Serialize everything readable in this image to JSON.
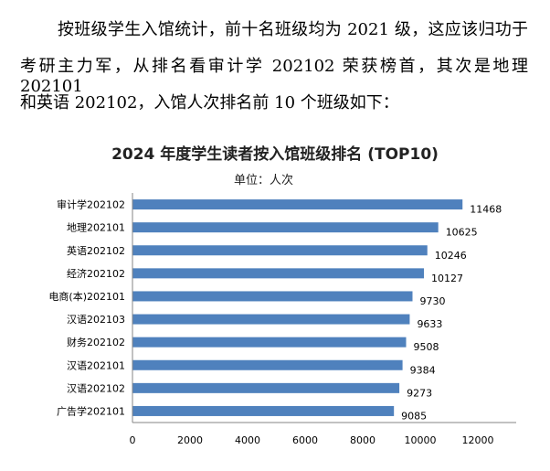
{
  "paragraph": {
    "lines": [
      "按班级学生入馆统计，前十名班级均为 2021 级，这应该归功于",
      "考研主力军，从排名看审计学 202102 荣获榜首，其次是地理 202101",
      "和英语 202102，入馆人次排名前 10 个班级如下："
    ]
  },
  "chart_data": {
    "type": "bar",
    "orientation": "horizontal",
    "title": "2024 年度学生读者按入馆班级排名 (TOP10)",
    "unit_label": "单位：人次",
    "categories": [
      "审计学202102",
      "地理202101",
      "英语202102",
      "经济202102",
      "电商(本)202101",
      "汉语202103",
      "财务202102",
      "汉语202101",
      "汉语202102",
      "广告学202101"
    ],
    "values": [
      11468,
      10625,
      10246,
      10127,
      9730,
      9633,
      9508,
      9384,
      9273,
      9085
    ],
    "xticks": [
      0,
      2000,
      4000,
      6000,
      8000,
      10000,
      12000
    ],
    "xlim": [
      0,
      12000
    ],
    "grid": false,
    "legend": "none",
    "bar_color": "#4f81bd",
    "axis_color": "#868686"
  }
}
